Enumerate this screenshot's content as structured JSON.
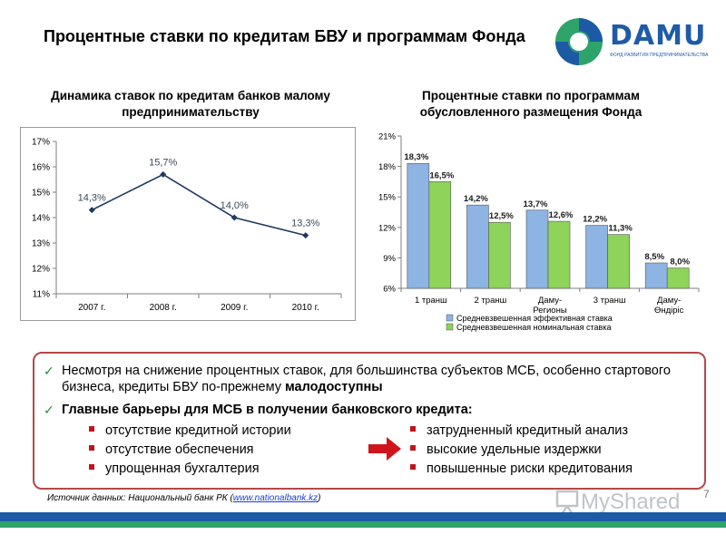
{
  "header": {
    "title": "Процентные ставки по кредитам БВУ и программам Фонда",
    "logo_text": "DAMU",
    "logo_subtitle": "ФОНД РАЗВИТИЯ ПРЕДПРИНИМАТЕЛЬСТВА"
  },
  "chart_data": [
    {
      "type": "line",
      "title": "Динамика ставок по кредитам банков малому предпринимательству",
      "categories": [
        "2007 г.",
        "2008 г.",
        "2009 г.",
        "2010 г."
      ],
      "series": [
        {
          "values": [
            14.3,
            15.7,
            14.0,
            13.3
          ],
          "labels": [
            "14,3%",
            "15,7%",
            "14,0%",
            "13,3%"
          ]
        }
      ],
      "ylim": [
        11,
        17
      ],
      "yticks": [
        "11%",
        "12%",
        "13%",
        "14%",
        "15%",
        "16%",
        "17%"
      ],
      "grid": false,
      "color": "#1f3a5f"
    },
    {
      "type": "bar",
      "title": "Процентные ставки по программам обусловленного размещения Фонда",
      "categories": [
        "1 транш",
        "2 транш",
        "Даму-Регионы",
        "3 транш",
        "Даму-Өндіріс"
      ],
      "category_lines": [
        [
          "1 транш"
        ],
        [
          "2 транш"
        ],
        [
          "Даму-",
          "Регионы"
        ],
        [
          "3 транш"
        ],
        [
          "Даму-",
          "Өндіріс"
        ]
      ],
      "series": [
        {
          "name": "Средневзвешенная эффективная ставка",
          "values": [
            18.3,
            14.2,
            13.7,
            12.2,
            8.5
          ],
          "labels": [
            "18,3%",
            "14,2%",
            "13,7%",
            "12,2%",
            "8,5%"
          ],
          "color": "#8db4e2"
        },
        {
          "name": "Средневзвешенная номинальная ставка",
          "values": [
            16.5,
            12.5,
            12.6,
            11.3,
            8.0
          ],
          "labels": [
            "16,5%",
            "12,5%",
            "12,6%",
            "11,3%",
            "8,0%"
          ],
          "color": "#8ed35a"
        }
      ],
      "ylim": [
        6,
        21
      ],
      "yticks": [
        "6%",
        "9%",
        "12%",
        "15%",
        "18%",
        "21%"
      ],
      "grid": false,
      "legend": "bottom"
    }
  ],
  "info": {
    "point1_text": "Несмотря на снижение процентных ставок, для большинства субъектов МСБ, особенно стартового бизнеса, кредиты БВУ по-прежнему ",
    "point1_bold": "малодоступны",
    "point2": "Главные барьеры для МСБ в получении банковского кредита:",
    "left_bullets": [
      "отсутствие кредитной истории",
      "отсутствие обеспечения",
      "упрощенная бухгалтерия"
    ],
    "right_bullets": [
      "затрудненный кредитный анализ",
      "высокие удельные издержки",
      "повышенные риски кредитования"
    ]
  },
  "footer": {
    "source_prefix": "Источник данных: Национальный банк РК (",
    "source_link": "www.nationalbank.kz",
    "source_suffix": ")",
    "page_number": "7",
    "watermark": "MyShared"
  }
}
